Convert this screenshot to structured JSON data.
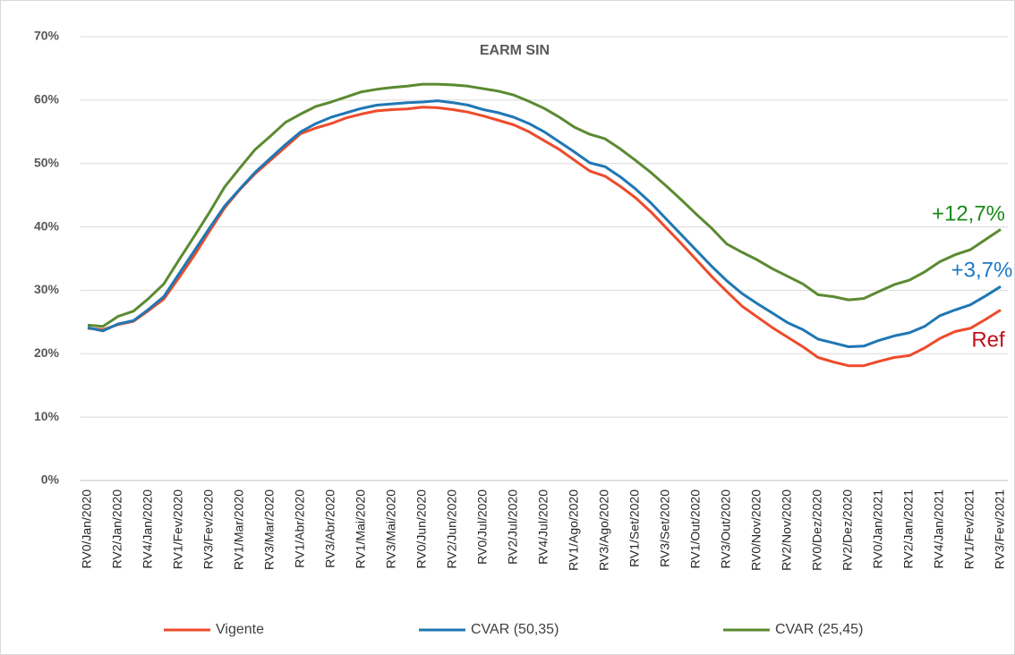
{
  "chart_data": {
    "type": "line",
    "title": "EARM SIN",
    "categories": [
      "RV0/Jan/2020",
      null,
      "RV2/Jan/2020",
      null,
      "RV4/Jan/2020",
      null,
      "RV1/Fev/2020",
      null,
      "RV3/Fev/2020",
      null,
      "RV1/Mar/2020",
      null,
      "RV3/Mar/2020",
      null,
      "RV1/Abr/2020",
      null,
      "RV3/Abr/2020",
      null,
      "RV1/Mai/2020",
      null,
      "RV3/Mai/2020",
      null,
      "RV0/Jun/2020",
      null,
      "RV2/Jun/2020",
      null,
      "RV0/Jul/2020",
      null,
      "RV2/Jul/2020",
      null,
      "RV4/Jul/2020",
      null,
      "RV1/Ago/2020",
      null,
      "RV3/Ago/2020",
      null,
      "RV1/Set/2020",
      null,
      "RV3/Set/2020",
      null,
      "RV1/Out/2020",
      null,
      "RV3/Out/2020",
      null,
      "RV0/Nov/2020",
      null,
      "RV2/Nov/2020",
      null,
      "RV0/Dez/2020",
      null,
      "RV2/Dez/2020",
      null,
      "RV0/Jan/2021",
      null,
      "RV2/Jan/2021",
      null,
      "RV4/Jan/2021",
      null,
      "RV1/Fev/2021",
      null,
      "RV3/Fev/2021"
    ],
    "series": [
      {
        "name": "Vigente",
        "color": "#ee4b2b",
        "values": [
          24.0,
          23.8,
          24.6,
          25.1,
          26.8,
          28.6,
          32.0,
          35.5,
          39.3,
          43.0,
          45.9,
          48.4,
          50.5,
          52.6,
          54.7,
          55.6,
          56.3,
          57.2,
          57.8,
          58.3,
          58.5,
          58.6,
          58.9,
          58.8,
          58.5,
          58.1,
          57.5,
          56.8,
          56.1,
          55.0,
          53.6,
          52.2,
          50.5,
          48.8,
          48.0,
          46.4,
          44.6,
          42.4,
          39.9,
          37.4,
          34.8,
          32.2,
          29.8,
          27.5,
          25.8,
          24.1,
          22.6,
          21.1,
          19.4,
          18.7,
          18.1,
          18.1,
          18.8,
          19.4,
          19.7,
          20.9,
          22.4,
          23.5,
          24.0,
          25.4,
          26.9
        ]
      },
      {
        "name": "CVAR (50,35)",
        "color": "#1f77b4",
        "values": [
          24.1,
          23.6,
          24.7,
          25.2,
          27.0,
          29.0,
          32.6,
          36.2,
          39.8,
          43.3,
          46.0,
          48.6,
          50.8,
          53.0,
          55.0,
          56.3,
          57.3,
          58.0,
          58.7,
          59.2,
          59.4,
          59.6,
          59.7,
          59.9,
          59.6,
          59.2,
          58.5,
          58.0,
          57.3,
          56.3,
          55.0,
          53.4,
          51.8,
          50.1,
          49.5,
          47.9,
          46.0,
          43.8,
          41.3,
          38.8,
          36.3,
          33.8,
          31.5,
          29.5,
          27.9,
          26.4,
          24.9,
          23.8,
          22.3,
          21.7,
          21.1,
          21.2,
          22.1,
          22.8,
          23.3,
          24.3,
          26.0,
          26.9,
          27.7,
          29.1,
          30.6
        ]
      },
      {
        "name": "CVAR (25,45)",
        "color": "#5b8a32",
        "values": [
          24.5,
          24.3,
          25.9,
          26.7,
          28.7,
          31.0,
          34.8,
          38.5,
          42.3,
          46.3,
          49.3,
          52.2,
          54.3,
          56.5,
          57.8,
          59.0,
          59.7,
          60.5,
          61.3,
          61.7,
          62.0,
          62.2,
          62.5,
          62.5,
          62.4,
          62.2,
          61.8,
          61.4,
          60.8,
          59.8,
          58.7,
          57.3,
          55.7,
          54.6,
          53.9,
          52.3,
          50.5,
          48.6,
          46.5,
          44.3,
          42.0,
          39.8,
          37.3,
          36.0,
          34.8,
          33.4,
          32.2,
          31.0,
          29.3,
          29.0,
          28.5,
          28.7,
          29.8,
          30.9,
          31.6,
          32.9,
          34.5,
          35.6,
          36.4,
          38.0,
          39.6
        ]
      }
    ],
    "annotations": [
      {
        "text": "+12,7%",
        "color": "#1a8a1a"
      },
      {
        "text": "+3,7%",
        "color": "#1f77c4"
      },
      {
        "text": "Ref",
        "color": "#c0101a"
      }
    ],
    "ylim": [
      0,
      70
    ],
    "yticks": [
      {
        "value": 0,
        "label": "0%"
      },
      {
        "value": 10,
        "label": "10%"
      },
      {
        "value": 20,
        "label": "20%"
      },
      {
        "value": 30,
        "label": "30%"
      },
      {
        "value": 40,
        "label": "40%"
      },
      {
        "value": 50,
        "label": "50%"
      },
      {
        "value": 60,
        "label": "60%"
      },
      {
        "value": 70,
        "label": "70%"
      }
    ],
    "grid": true,
    "legend": "bottom"
  }
}
